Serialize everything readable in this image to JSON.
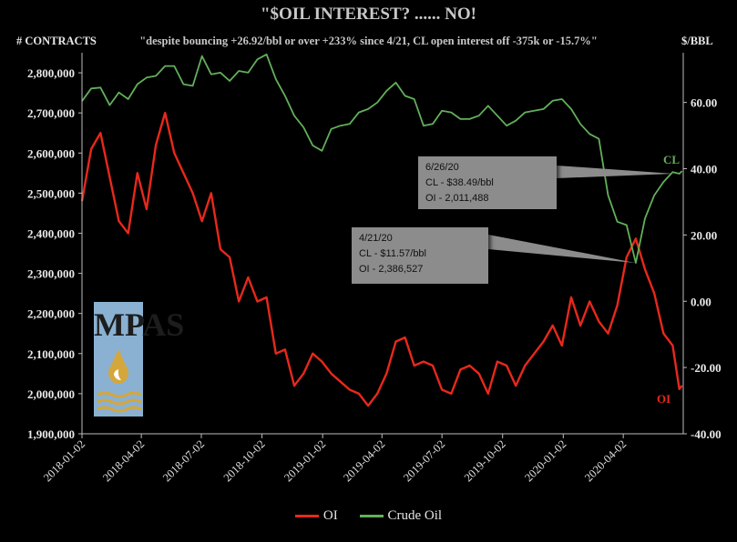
{
  "header": {
    "title": "\"$OIL INTEREST? ...... NO!",
    "subtitle": "\"despite bouncing +26.92/bbl or over +233% since 4/21, CL open interest off -375k or -15.7%\"",
    "left_axis_label": "# CONTRACTS",
    "right_axis_label": "$/BBL"
  },
  "logo": {
    "text": "MPAS"
  },
  "callouts": [
    {
      "date": "6/26/20",
      "line1": "CL - $38.49/bbl",
      "line2": "OI - 2,011,488"
    },
    {
      "date": "4/21/20",
      "line1": "CL - $11.57/bbl",
      "line2": "OI - 2,386,527"
    }
  ],
  "series_end_labels": {
    "cl": "CL",
    "oi": "OI"
  },
  "legend": [
    {
      "name": "OI",
      "color": "#e8281c"
    },
    {
      "name": "Crude Oil",
      "color": "#62b05a"
    }
  ],
  "chart_data": {
    "type": "line",
    "colors": {
      "oi": "#e8281c",
      "crude": "#62b05a",
      "axis": "#bdbdbd",
      "background": "#000000"
    },
    "x_ticks": [
      "2018-01-02",
      "2018-04-02",
      "2018-07-02",
      "2018-10-02",
      "2019-01-02",
      "2019-04-02",
      "2019-07-02",
      "2019-10-02",
      "2020-01-02",
      "2020-04-02"
    ],
    "y_left_ticks": [
      "1,900,000",
      "2,000,000",
      "2,100,000",
      "2,200,000",
      "2,300,000",
      "2,400,000",
      "2,500,000",
      "2,600,000",
      "2,700,000",
      "2,800,000"
    ],
    "y_right_ticks": [
      "-40.00",
      "-20.00",
      "0.00",
      "20.00",
      "40.00",
      "60.00"
    ],
    "ylim_left": [
      1900000,
      2850000
    ],
    "ylim_right": [
      -40,
      75
    ],
    "xlim": [
      "2018-01-02",
      "2020-07-02"
    ],
    "series": [
      {
        "name": "OI",
        "axis": "left",
        "x": [
          "2018-01-02",
          "2018-01-16",
          "2018-01-30",
          "2018-02-13",
          "2018-02-27",
          "2018-03-13",
          "2018-03-27",
          "2018-04-10",
          "2018-04-24",
          "2018-05-08",
          "2018-05-22",
          "2018-06-05",
          "2018-06-19",
          "2018-07-03",
          "2018-07-17",
          "2018-07-31",
          "2018-08-14",
          "2018-08-28",
          "2018-09-11",
          "2018-09-25",
          "2018-10-09",
          "2018-10-23",
          "2018-11-06",
          "2018-11-20",
          "2018-12-04",
          "2018-12-18",
          "2019-01-01",
          "2019-01-15",
          "2019-01-29",
          "2019-02-12",
          "2019-02-26",
          "2019-03-12",
          "2019-03-26",
          "2019-04-09",
          "2019-04-23",
          "2019-05-07",
          "2019-05-21",
          "2019-06-04",
          "2019-06-18",
          "2019-07-02",
          "2019-07-16",
          "2019-07-30",
          "2019-08-13",
          "2019-08-27",
          "2019-09-10",
          "2019-09-24",
          "2019-10-08",
          "2019-10-22",
          "2019-11-05",
          "2019-11-19",
          "2019-12-03",
          "2019-12-17",
          "2019-12-31",
          "2020-01-14",
          "2020-01-28",
          "2020-02-11",
          "2020-02-25",
          "2020-03-10",
          "2020-03-24",
          "2020-04-07",
          "2020-04-21",
          "2020-05-05",
          "2020-05-19",
          "2020-06-02",
          "2020-06-16",
          "2020-06-26",
          "2020-06-30"
        ],
        "values": [
          2480000,
          2610000,
          2650000,
          2540000,
          2430000,
          2400000,
          2550000,
          2460000,
          2620000,
          2700000,
          2600000,
          2550000,
          2500000,
          2430000,
          2500000,
          2360000,
          2340000,
          2230000,
          2290000,
          2230000,
          2240000,
          2100000,
          2110000,
          2020000,
          2050000,
          2100000,
          2080000,
          2050000,
          2030000,
          2010000,
          2000000,
          1970000,
          2000000,
          2050000,
          2130000,
          2140000,
          2070000,
          2080000,
          2070000,
          2010000,
          2000000,
          2060000,
          2070000,
          2050000,
          2000000,
          2080000,
          2070000,
          2020000,
          2070000,
          2100000,
          2130000,
          2170000,
          2120000,
          2240000,
          2170000,
          2230000,
          2180000,
          2150000,
          2220000,
          2340000,
          2386527,
          2310000,
          2250000,
          2150000,
          2120000,
          2011488,
          2020000
        ]
      },
      {
        "name": "Crude Oil",
        "axis": "right",
        "x": [
          "2018-01-02",
          "2018-01-16",
          "2018-01-30",
          "2018-02-13",
          "2018-02-27",
          "2018-03-13",
          "2018-03-27",
          "2018-04-10",
          "2018-04-24",
          "2018-05-08",
          "2018-05-22",
          "2018-06-05",
          "2018-06-19",
          "2018-07-03",
          "2018-07-17",
          "2018-07-31",
          "2018-08-14",
          "2018-08-28",
          "2018-09-11",
          "2018-09-25",
          "2018-10-09",
          "2018-10-23",
          "2018-11-06",
          "2018-11-20",
          "2018-12-04",
          "2018-12-18",
          "2019-01-01",
          "2019-01-15",
          "2019-01-29",
          "2019-02-12",
          "2019-02-26",
          "2019-03-12",
          "2019-03-26",
          "2019-04-09",
          "2019-04-23",
          "2019-05-07",
          "2019-05-21",
          "2019-06-04",
          "2019-06-18",
          "2019-07-02",
          "2019-07-16",
          "2019-07-30",
          "2019-08-13",
          "2019-08-27",
          "2019-09-10",
          "2019-09-24",
          "2019-10-08",
          "2019-10-22",
          "2019-11-05",
          "2019-11-19",
          "2019-12-03",
          "2019-12-17",
          "2019-12-31",
          "2020-01-14",
          "2020-01-28",
          "2020-02-11",
          "2020-02-25",
          "2020-03-10",
          "2020-03-24",
          "2020-04-07",
          "2020-04-21",
          "2020-05-05",
          "2020-05-19",
          "2020-06-02",
          "2020-06-16",
          "2020-06-26",
          "2020-06-30"
        ],
        "values": [
          60.4,
          64.2,
          64.5,
          59.2,
          63.0,
          61.0,
          65.5,
          67.5,
          68.0,
          71.0,
          71.0,
          65.5,
          65.0,
          74.0,
          68.5,
          69.0,
          66.5,
          69.5,
          69.0,
          73.0,
          74.5,
          67.0,
          62.0,
          56.0,
          52.5,
          47.0,
          45.4,
          52.0,
          53.0,
          53.5,
          57.0,
          58.0,
          60.0,
          63.5,
          66.0,
          62.0,
          61.0,
          53.0,
          53.5,
          57.5,
          57.0,
          55.0,
          55.0,
          56.0,
          59.0,
          56.0,
          53.0,
          54.5,
          57.0,
          57.5,
          58.0,
          60.5,
          61.0,
          58.0,
          53.5,
          50.5,
          49.0,
          32.0,
          24.0,
          23.0,
          11.57,
          25.0,
          32.0,
          36.0,
          39.0,
          38.49,
          39.3
        ]
      }
    ]
  }
}
